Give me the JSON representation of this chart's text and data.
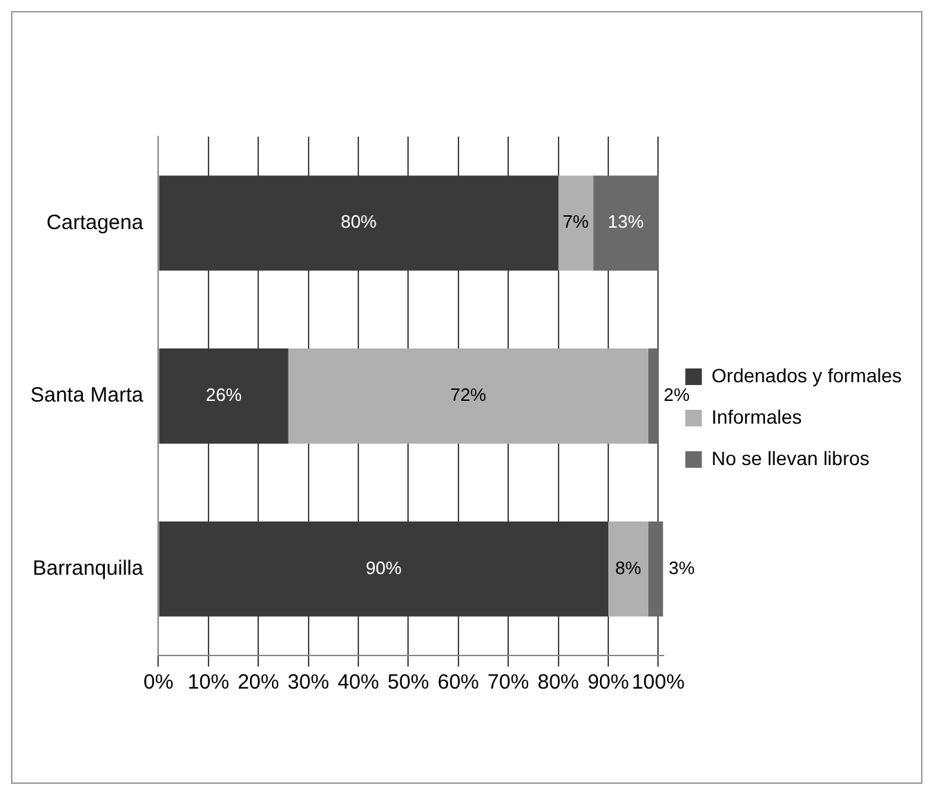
{
  "chart_data": {
    "type": "bar",
    "orientation": "horizontal",
    "stacked": true,
    "categories": [
      "Cartagena",
      "Santa Marta",
      "Barranquilla"
    ],
    "series": [
      {
        "name": "Ordenados y formales",
        "color": "#3a3a3a",
        "values": [
          80,
          26,
          90
        ],
        "value_labels": [
          "80%",
          "26%",
          "90%"
        ]
      },
      {
        "name": "Informales",
        "color": "#b0b0b0",
        "values": [
          7,
          72,
          8
        ],
        "value_labels": [
          "7%",
          "72%",
          "8%"
        ]
      },
      {
        "name": "No se llevan libros",
        "color": "#6a6a6a",
        "values": [
          13,
          2,
          3
        ],
        "value_labels": [
          "13%",
          "2%",
          "3%"
        ]
      }
    ],
    "xlim": [
      0,
      101
    ],
    "xticks": [
      {
        "value": 0,
        "label": "0%"
      },
      {
        "value": 10,
        "label": "10%"
      },
      {
        "value": 20,
        "label": "20%"
      },
      {
        "value": 30,
        "label": "30%"
      },
      {
        "value": 40,
        "label": "40%"
      },
      {
        "value": 50,
        "label": "50%"
      },
      {
        "value": 60,
        "label": "60%"
      },
      {
        "value": 70,
        "label": "70%"
      },
      {
        "value": 80,
        "label": "80%"
      },
      {
        "value": 90,
        "label": "90%"
      },
      {
        "value": 100,
        "label": "100%"
      }
    ],
    "grid": "x",
    "legend": "right"
  }
}
